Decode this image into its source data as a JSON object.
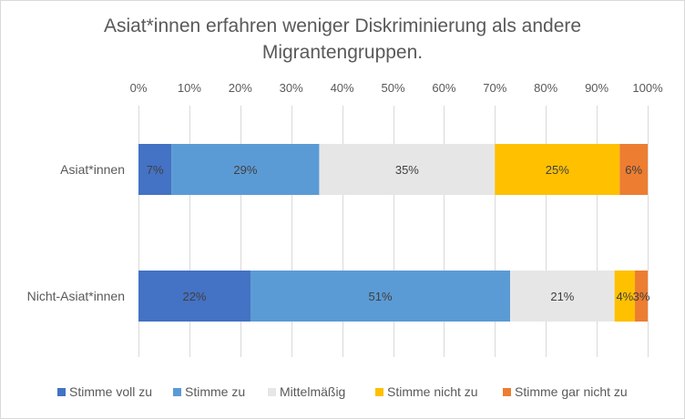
{
  "title_lines": [
    "Asiat*innen erfahren weniger Diskriminierung als andere",
    "Migrantengruppen."
  ],
  "chart_data": {
    "type": "bar",
    "orientation": "horizontal",
    "stacked": "100%",
    "title": "Asiat*innen erfahren weniger Diskriminierung als andere Migrantengruppen.",
    "categories": [
      "Asiat*innen",
      "Nicht-Asiat*innen"
    ],
    "x_ticks": [
      "0%",
      "10%",
      "20%",
      "30%",
      "40%",
      "50%",
      "60%",
      "70%",
      "80%",
      "90%",
      "100%"
    ],
    "xlim": [
      0,
      100
    ],
    "x_axis_position": "top",
    "grid": true,
    "legend_position": "bottom",
    "series": [
      {
        "name": "Stimme voll zu",
        "color": "#4472C4",
        "values": [
          6.5,
          22
        ],
        "labels": [
          "7%",
          "22%"
        ]
      },
      {
        "name": "Stimme zu",
        "color": "#5B9BD5",
        "values": [
          29,
          51
        ],
        "labels": [
          "29%",
          "51%"
        ]
      },
      {
        "name": "Mittelmäßig",
        "color": "#E7E6E6",
        "values": [
          34.5,
          20.5
        ],
        "labels": [
          "35%",
          "21%"
        ]
      },
      {
        "name": "Stimme nicht zu",
        "color": "#FFC000",
        "values": [
          24.5,
          4
        ],
        "labels": [
          "25%",
          "4%"
        ]
      },
      {
        "name": "Stimme gar nicht zu",
        "color": "#ED7D31",
        "values": [
          5.5,
          2.5
        ],
        "labels": [
          "6%",
          "3%"
        ]
      }
    ]
  }
}
